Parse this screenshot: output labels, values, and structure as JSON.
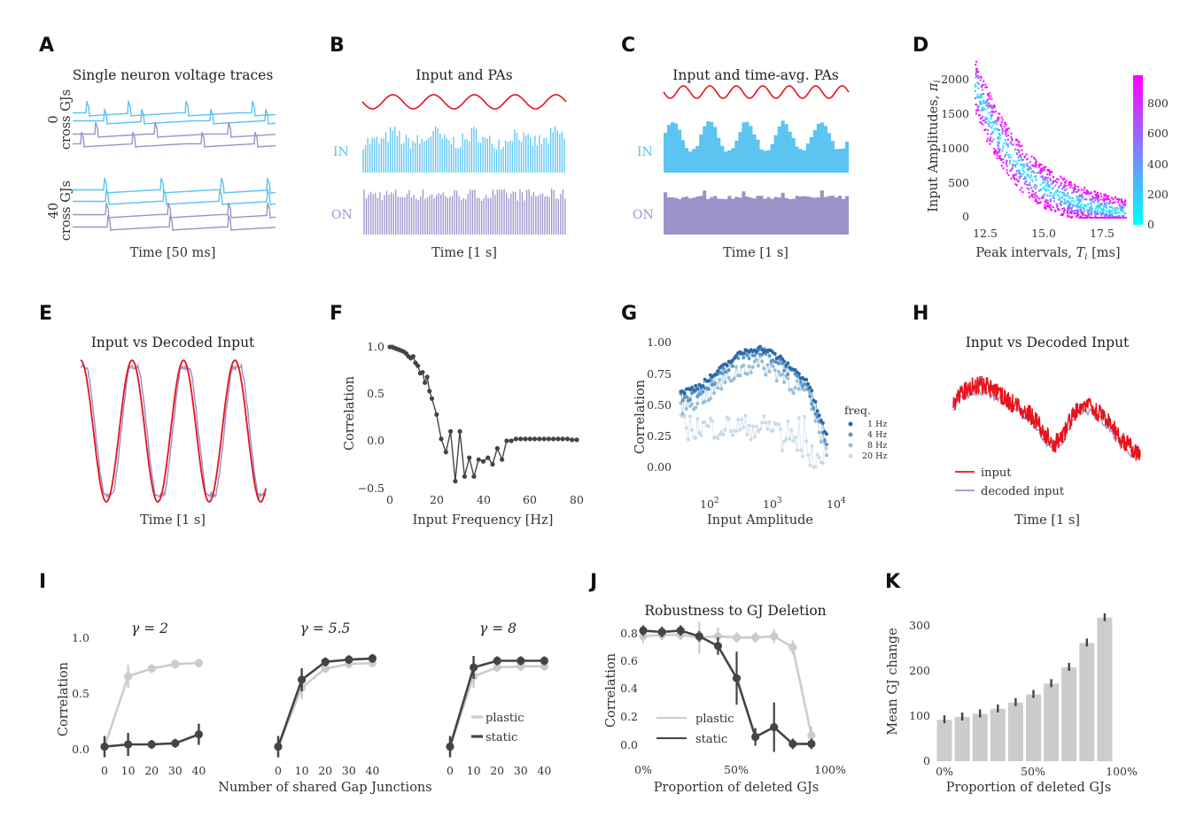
{
  "colors": {
    "input": "#e8121b",
    "in_neuron": "#5bc4f1",
    "on_neuron": "#9a93c9",
    "dark": "#444444",
    "light": "#cccccc",
    "bars": "#cccccc"
  },
  "panels": {
    "A": {
      "label": "A",
      "title": "Single neuron voltage traces",
      "group1": "0",
      "group1_sub": "cross GJs",
      "group2": "40",
      "group2_sub": "cross GJs",
      "xlabel": "Time [50 ms]"
    },
    "B": {
      "label": "B",
      "title": "Input and PAs",
      "in_label": "IN",
      "on_label": "ON",
      "xlabel": "Time [1 s]"
    },
    "C": {
      "label": "C",
      "title": "Input and time-avg. PAs",
      "in_label": "IN",
      "on_label": "ON",
      "xlabel": "Time [1 s]"
    },
    "D": {
      "label": "D",
      "ylabel": "Input Amplitudes, ",
      "ylabel_var": "π",
      "ylabel_sub": "i",
      "xlabel": "Peak intervals, ",
      "xlabel_var": "T",
      "xlabel_sub": "i",
      "xlabel_unit": " [ms]",
      "yticks": [
        "2000",
        "1500",
        "1000",
        "500",
        "0"
      ],
      "xticks": [
        "12.5",
        "15.0",
        "17.5"
      ],
      "cbar_ticks": [
        "800",
        "600",
        "400",
        "200",
        "0"
      ]
    },
    "E": {
      "label": "E",
      "title": "Input vs Decoded Input",
      "xlabel": "Time [1 s]"
    },
    "F": {
      "label": "F",
      "ylabel": "Correlation",
      "xlabel": "Input Frequency [Hz]",
      "yticks": [
        "1.0",
        "0.5",
        "0.0",
        "−0.5"
      ],
      "xticks": [
        "0",
        "20",
        "40",
        "60",
        "80"
      ]
    },
    "G": {
      "label": "G",
      "ylabel": "Correlation",
      "xlabel": "Input Amplitude",
      "yticks": [
        "1.00",
        "0.75",
        "0.50",
        "0.25",
        "0.00"
      ],
      "xticks": [
        "10",
        "10",
        "10"
      ],
      "xtick_exps": [
        "2",
        "3",
        "4"
      ],
      "legend_title": "freq.",
      "legend": [
        "1 Hz",
        "4 Hz",
        "8 Hz",
        "20 Hz"
      ]
    },
    "H": {
      "label": "H",
      "title": "Input vs Decoded Input",
      "xlabel": "Time [1 s]",
      "legend": [
        "input",
        "decoded input"
      ]
    },
    "I": {
      "label": "I",
      "ylabel": "Correlation",
      "xlabel": "Number of shared Gap Junctions",
      "titles": [
        "γ = 2",
        "γ = 5.5",
        "γ = 8"
      ],
      "yticks": [
        "1.0",
        "0.5",
        "0.0"
      ],
      "xticks": [
        "0",
        "10",
        "20",
        "30",
        "40"
      ],
      "legend": [
        "plastic",
        "static"
      ]
    },
    "J": {
      "label": "J",
      "title": "Robustness to GJ Deletion",
      "ylabel": "Correlation",
      "xlabel": "Proportion of deleted GJs",
      "yticks": [
        "0.8",
        "0.6",
        "0.4",
        "0.2",
        "0.0"
      ],
      "xticks": [
        "0%",
        "50%",
        "100%"
      ],
      "legend": [
        "plastic",
        "static"
      ]
    },
    "K": {
      "label": "K",
      "ylabel": "Mean GJ change",
      "xlabel": "Proportion of deleted GJs",
      "yticks": [
        "300",
        "200",
        "100",
        "0"
      ],
      "xticks": [
        "0%",
        "50%",
        "100%"
      ]
    }
  },
  "chart_data": [
    {
      "panel": "F",
      "type": "line",
      "x": [
        0,
        1,
        2,
        3,
        4,
        5,
        6,
        7,
        8,
        9,
        10,
        11,
        12,
        13,
        14,
        15,
        16,
        17,
        18,
        20,
        22,
        24,
        26,
        28,
        30,
        32,
        34,
        36,
        38,
        40,
        42,
        44,
        46,
        48,
        50,
        52,
        54,
        56,
        58,
        60,
        62,
        64,
        66,
        68,
        70,
        72,
        74,
        76,
        78,
        80
      ],
      "y": [
        1.0,
        1.0,
        0.99,
        0.98,
        0.97,
        0.96,
        0.95,
        0.93,
        0.9,
        0.88,
        0.9,
        0.83,
        0.8,
        0.72,
        0.73,
        0.62,
        0.68,
        0.53,
        0.45,
        0.28,
        0.02,
        -0.12,
        0.1,
        -0.43,
        0.1,
        -0.38,
        -0.18,
        -0.38,
        -0.2,
        -0.22,
        -0.18,
        -0.25,
        -0.08,
        -0.2,
        0.0,
        0.0,
        0.02,
        0.02,
        0.02,
        0.02,
        0.02,
        0.02,
        0.02,
        0.02,
        0.02,
        0.02,
        0.02,
        0.02,
        0.01,
        0.01
      ],
      "xlim": [
        0,
        80
      ],
      "ylim": [
        -0.55,
        1.05
      ]
    },
    {
      "panel": "I",
      "type": "line",
      "x": [
        0,
        10,
        20,
        30,
        40
      ],
      "subplots": [
        {
          "title": "γ = 2",
          "series": [
            {
              "name": "plastic",
              "values": [
                0.02,
                0.65,
                0.72,
                0.76,
                0.77
              ]
            },
            {
              "name": "static",
              "values": [
                0.02,
                0.04,
                0.04,
                0.05,
                0.13
              ]
            }
          ]
        },
        {
          "title": "γ = 5.5",
          "series": [
            {
              "name": "plastic",
              "values": [
                0.02,
                0.55,
                0.72,
                0.76,
                0.77
              ]
            },
            {
              "name": "static",
              "values": [
                0.02,
                0.62,
                0.78,
                0.8,
                0.81
              ]
            }
          ]
        },
        {
          "title": "γ = 8",
          "series": [
            {
              "name": "plastic",
              "values": [
                0.02,
                0.65,
                0.73,
                0.74,
                0.74
              ]
            },
            {
              "name": "static",
              "values": [
                0.02,
                0.73,
                0.79,
                0.79,
                0.79
              ]
            }
          ]
        }
      ],
      "ylim": [
        -0.05,
        1.05
      ]
    },
    {
      "panel": "J",
      "type": "line",
      "x": [
        0,
        10,
        20,
        30,
        40,
        50,
        60,
        70,
        80,
        90
      ],
      "series": [
        {
          "name": "plastic",
          "values": [
            0.78,
            0.79,
            0.79,
            0.77,
            0.78,
            0.77,
            0.77,
            0.78,
            0.7,
            0.07
          ]
        },
        {
          "name": "static",
          "values": [
            0.82,
            0.81,
            0.82,
            0.78,
            0.71,
            0.48,
            0.06,
            0.13,
            0.01,
            0.01
          ]
        }
      ],
      "ylim": [
        -0.02,
        0.85
      ]
    },
    {
      "panel": "K",
      "type": "bar",
      "categories": [
        "0%",
        "10%",
        "20%",
        "30%",
        "40%",
        "50%",
        "60%",
        "70%",
        "80%",
        "90%"
      ],
      "values": [
        92,
        98,
        105,
        116,
        130,
        148,
        172,
        208,
        262,
        318
      ],
      "ylim": [
        0,
        340
      ]
    }
  ]
}
